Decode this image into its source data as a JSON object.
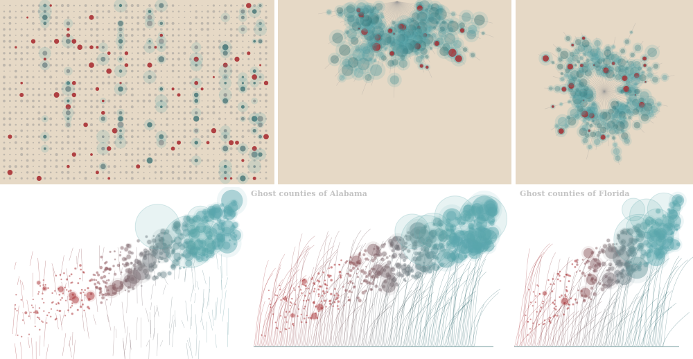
{
  "captions": {
    "alabama": "Ghost counties of Alabama",
    "florida": "Ghost counties of Florida"
  },
  "palette": {
    "background_beige": "#e6d9c6",
    "background_white": "#ffffff",
    "teal": "#5aa7ad",
    "teal_dark": "#1f5f63",
    "red": "#a5252a",
    "gray_dot": "#8c8c8c",
    "caption_text": "#c4c4c4"
  },
  "panels": [
    {
      "id": "dot-grid",
      "style": "grid"
    },
    {
      "id": "alabama-radial",
      "style": "half-radial"
    },
    {
      "id": "florida-radial",
      "style": "full-radial"
    },
    {
      "id": "scatter-plain",
      "style": "scatter"
    },
    {
      "id": "scatter-alabama-curves",
      "style": "scatter-curves"
    },
    {
      "id": "scatter-florida-curves",
      "style": "scatter-curves"
    }
  ]
}
